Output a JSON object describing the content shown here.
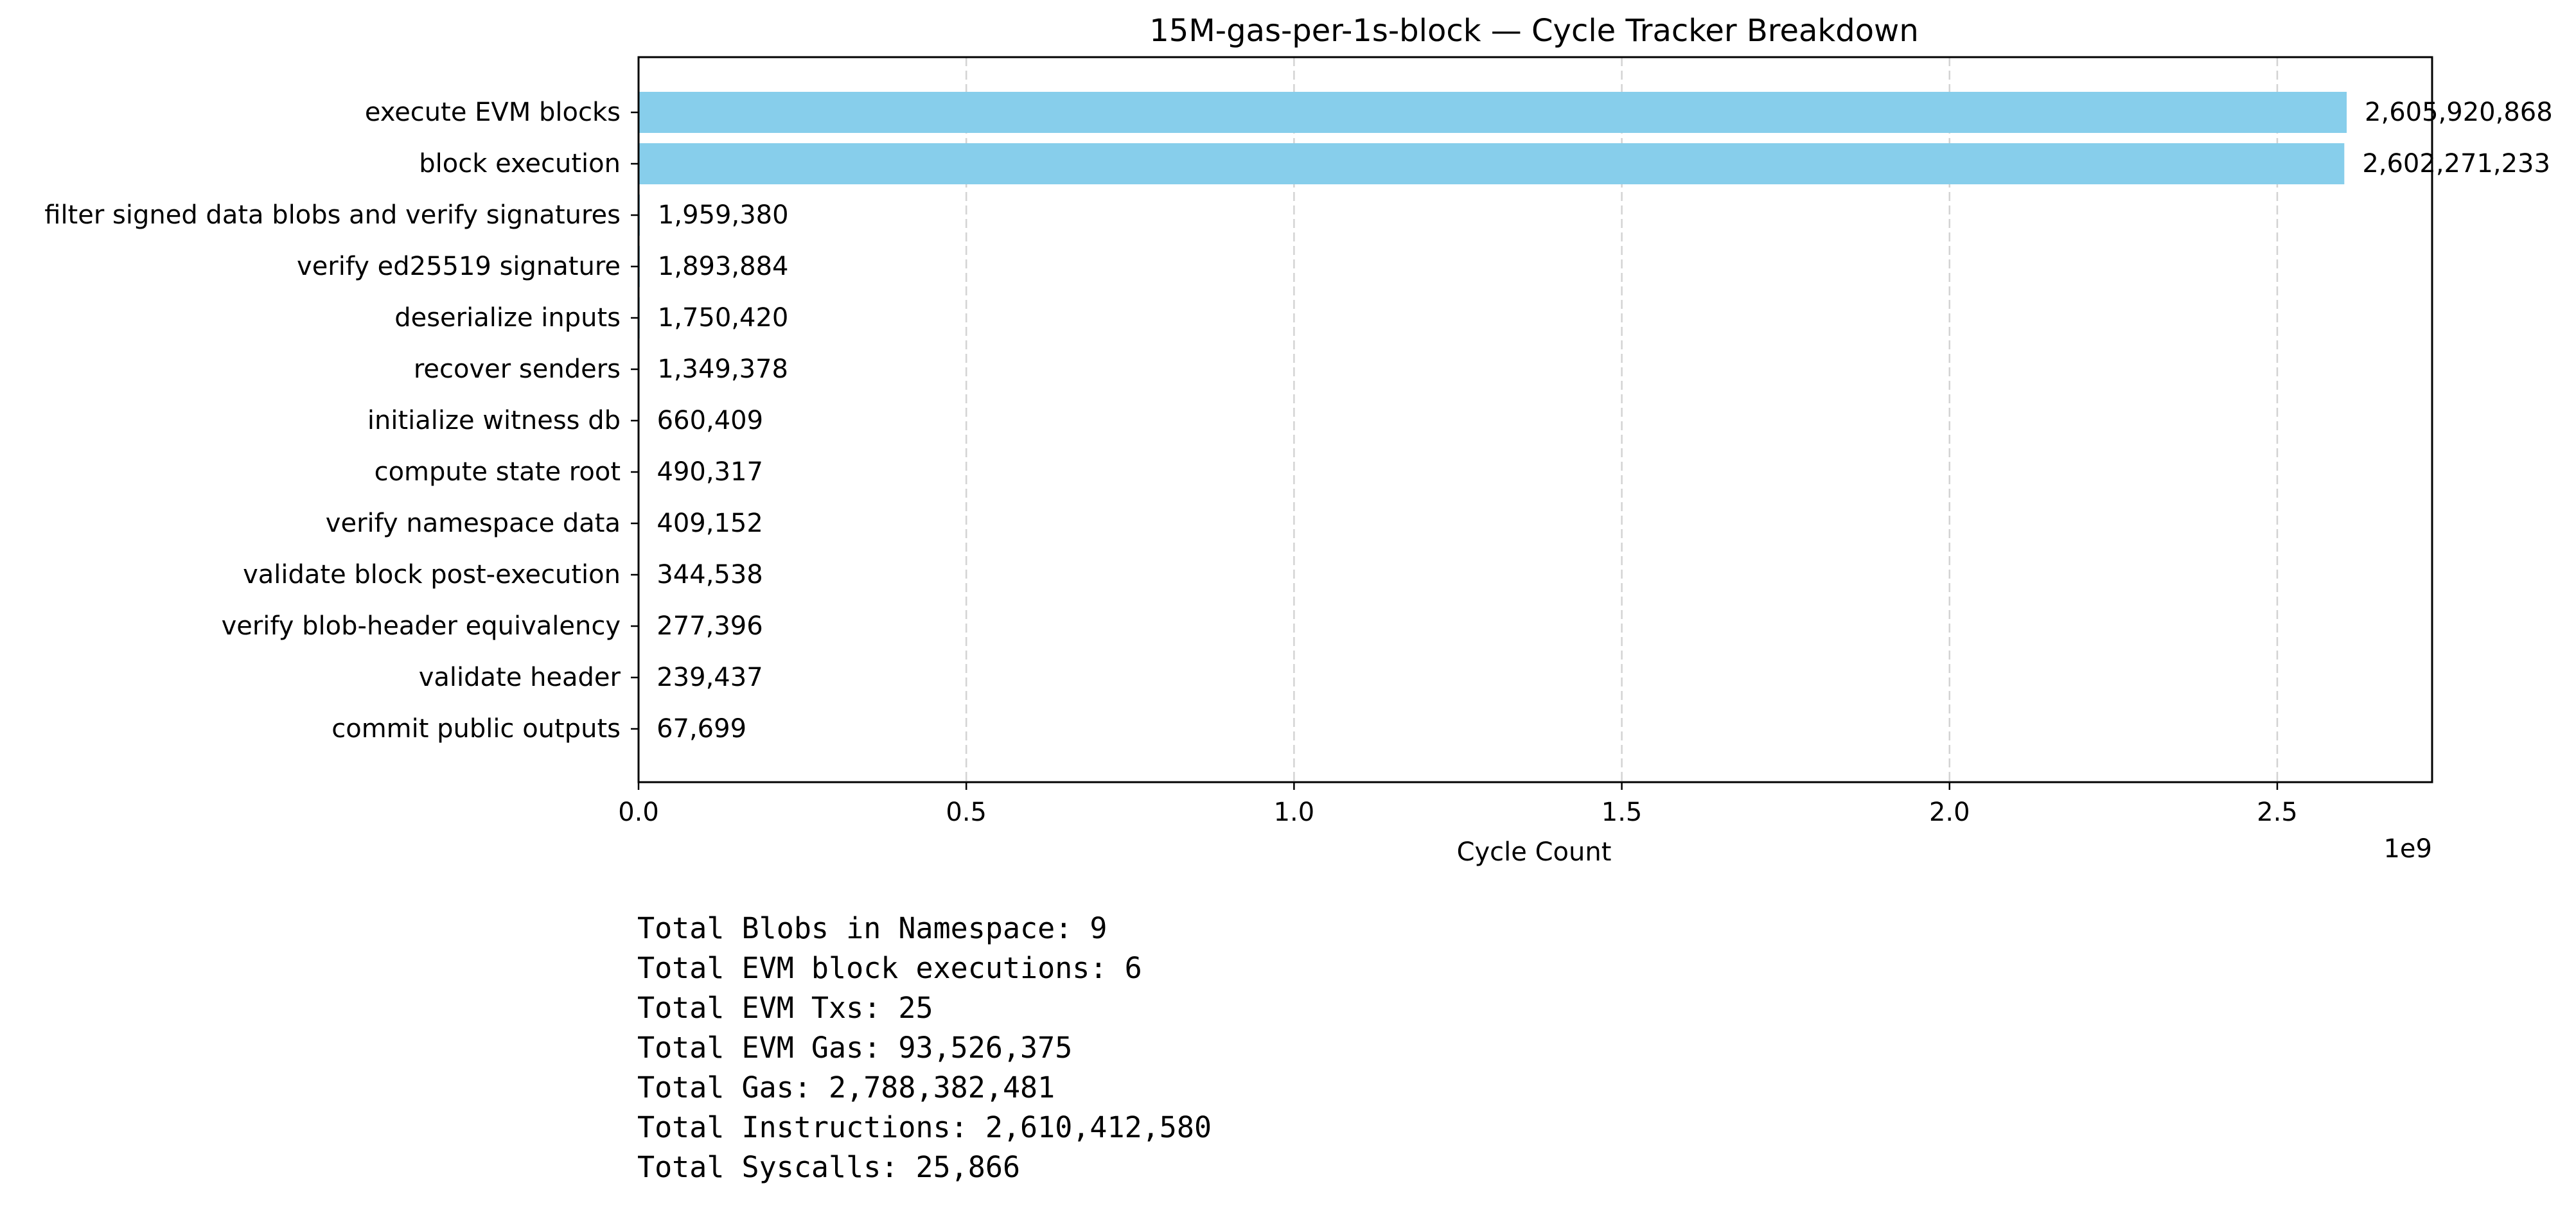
{
  "chart_data": {
    "type": "bar",
    "orientation": "horizontal",
    "title": "15M-gas-per-1s-block — Cycle Tracker Breakdown",
    "xlabel": "Cycle Count",
    "ylabel": "",
    "x_offset_text": "1e9",
    "xlim": [
      0,
      2736216911
    ],
    "x_ticks": [
      0,
      500000000,
      1000000000,
      1500000000,
      2000000000,
      2500000000
    ],
    "x_tick_labels": [
      "0.0",
      "0.5",
      "1.0",
      "1.5",
      "2.0",
      "2.5"
    ],
    "grid": "x, dashed",
    "bar_color": "#87CEEB",
    "categories": [
      "execute EVM blocks",
      "block execution",
      "filter signed data blobs and verify signatures",
      "verify ed25519 signature",
      "deserialize inputs",
      "recover senders",
      "initialize witness db",
      "compute state root",
      "verify namespace data",
      "validate block post-execution",
      "verify blob-header equivalency",
      "validate header",
      "commit public outputs"
    ],
    "values": [
      2605920868,
      2602271233,
      1959380,
      1893884,
      1750420,
      1349378,
      660409,
      490317,
      409152,
      344538,
      277396,
      239437,
      67699
    ],
    "value_labels": [
      "2,605,920,868",
      "2,602,271,233",
      "1,959,380",
      "1,893,884",
      "1,750,420",
      "1,349,378",
      "660,409",
      "490,317",
      "409,152",
      "344,538",
      "277,396",
      "239,437",
      "67,699"
    ]
  },
  "summary": [
    "Total Blobs in Namespace: 9",
    "Total EVM block executions: 6",
    "Total EVM Txs: 25",
    "Total EVM Gas: 93,526,375",
    "Total Gas: 2,788,382,481",
    "Total Instructions: 2,610,412,580",
    "Total Syscalls: 25,866"
  ]
}
